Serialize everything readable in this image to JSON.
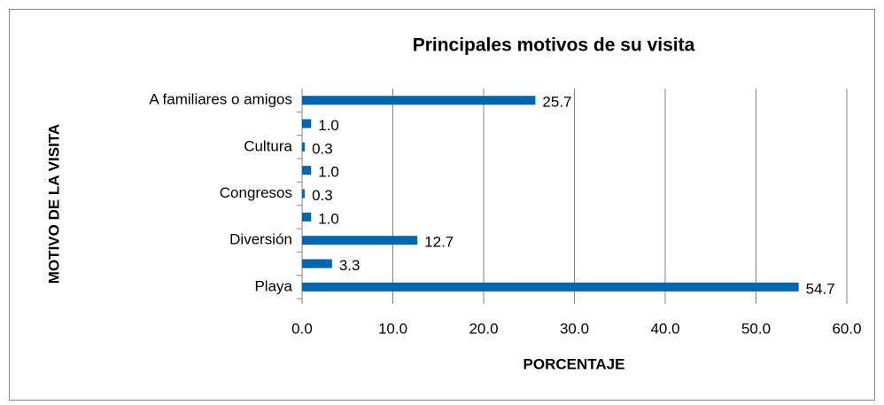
{
  "chart_data": {
    "type": "bar",
    "orientation": "horizontal",
    "title": "Principales motivos de su visita",
    "xlabel": "PORCENTAJE",
    "ylabel": "MOTIVO DE LA VISITA",
    "categories": [
      "Playa",
      null,
      "Diversión",
      null,
      "Congresos",
      null,
      "Cultura",
      null,
      "A familiares o amigos"
    ],
    "values": [
      54.7,
      3.3,
      12.7,
      1.0,
      0.3,
      1.0,
      0.3,
      1.0,
      25.7
    ],
    "value_labels": [
      "54.7",
      "3.3",
      "12.7",
      "1.0",
      "0.3",
      "1.0",
      "0.3",
      "1.0",
      "25.7"
    ],
    "color": "#0066b0",
    "xlim": [
      0,
      60
    ],
    "xticks": [
      {
        "value": 0,
        "label": "0.0"
      },
      {
        "value": 10,
        "label": "10.0"
      },
      {
        "value": 20,
        "label": "20.0"
      },
      {
        "value": 30,
        "label": "30.0"
      },
      {
        "value": 40,
        "label": "40.0"
      },
      {
        "value": 50,
        "label": "50.0"
      },
      {
        "value": 60,
        "label": "60.0"
      }
    ],
    "grid": true
  }
}
